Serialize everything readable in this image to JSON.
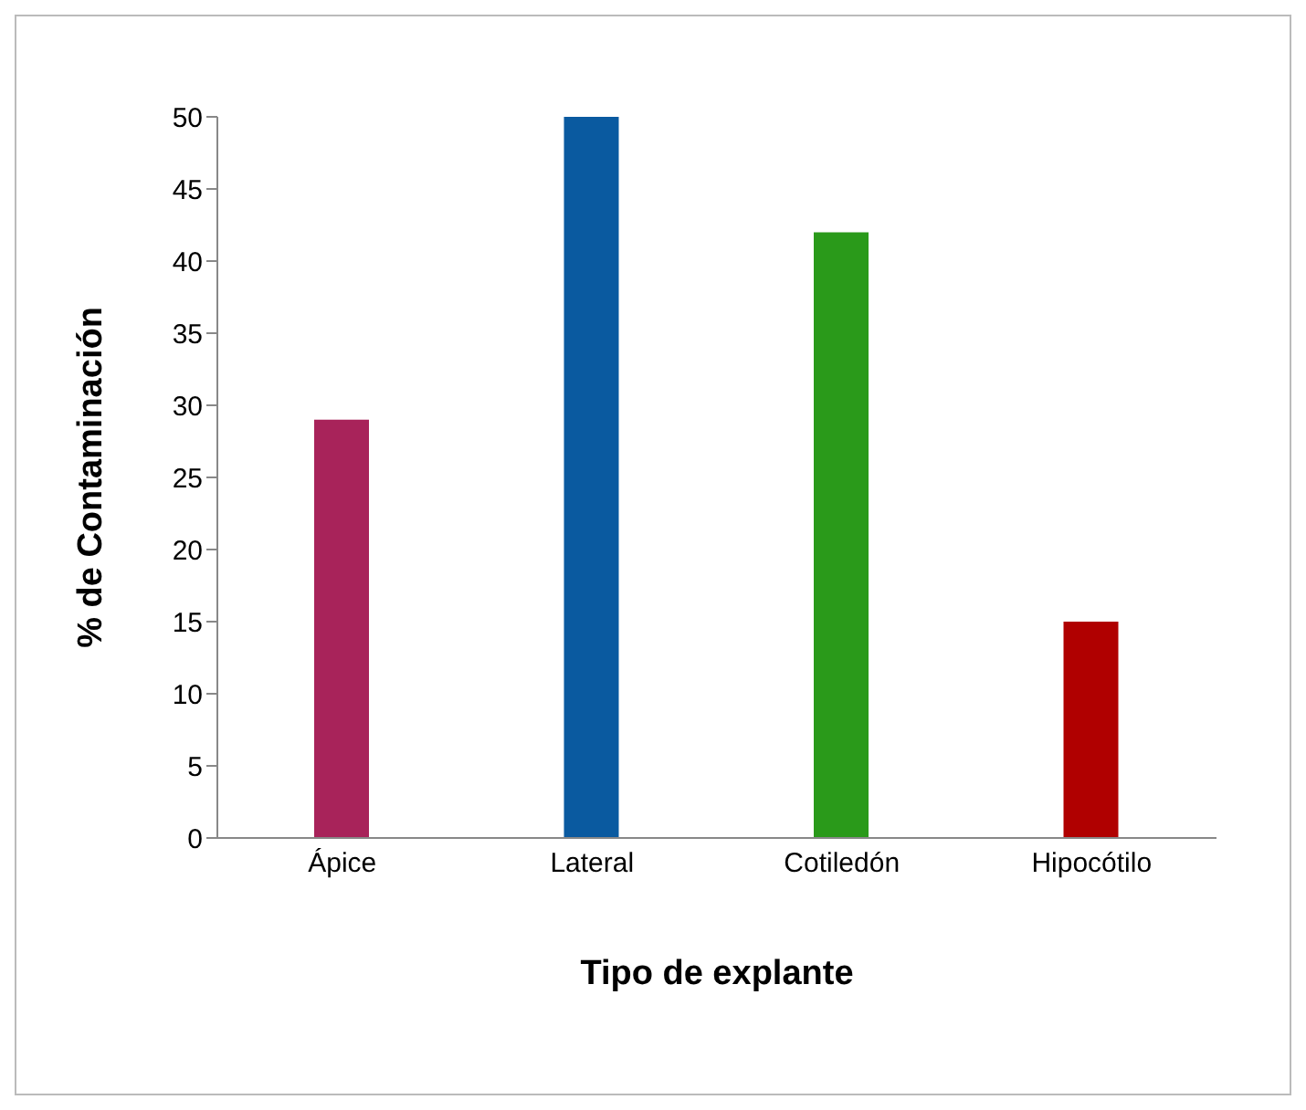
{
  "chart_data": {
    "type": "bar",
    "xlabel": "Tipo de explante",
    "ylabel": "% de Contaminación",
    "categories": [
      "Ápice",
      "Lateral",
      "Cotiledón",
      "Hipocótilo"
    ],
    "values": [
      29,
      50,
      42,
      15
    ],
    "colors": [
      "#a8235a",
      "#0a5aa0",
      "#2a9a1a",
      "#b00000"
    ],
    "ylim": [
      0,
      50
    ],
    "yticks": [
      0,
      5,
      10,
      15,
      20,
      25,
      30,
      35,
      40,
      45,
      50
    ],
    "grid": false
  }
}
